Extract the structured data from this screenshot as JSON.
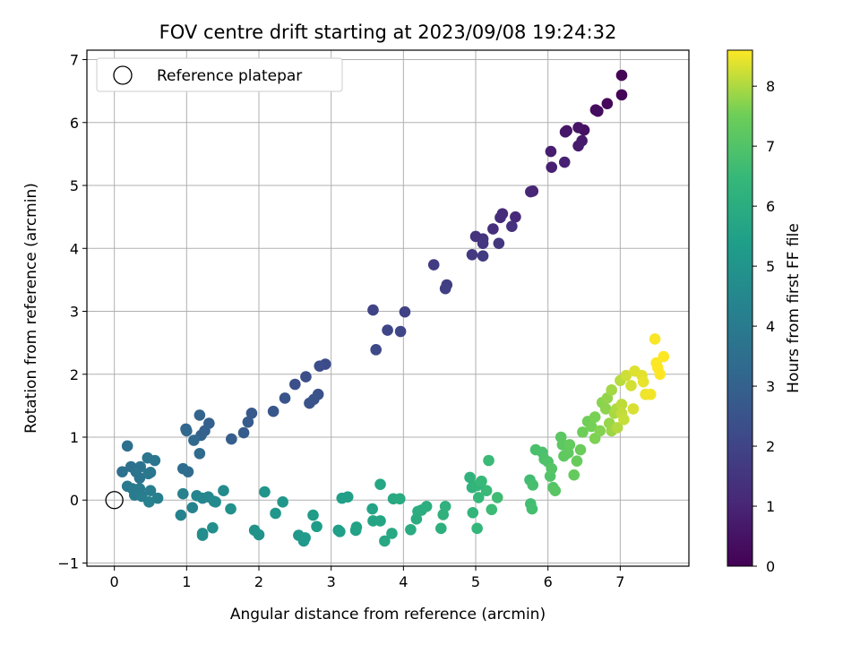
{
  "chart_data": {
    "type": "scatter",
    "title": "FOV centre drift starting at 2023/09/08 19:24:32",
    "xlabel": "Angular distance from reference (arcmin)",
    "ylabel": "Rotation from reference (arcmin)",
    "xlim": [
      -0.38,
      7.95
    ],
    "ylim": [
      -1.05,
      7.15
    ],
    "xticks": [
      0,
      1,
      2,
      3,
      4,
      5,
      6,
      7
    ],
    "yticks": [
      -1,
      0,
      1,
      2,
      3,
      4,
      5,
      6,
      7
    ],
    "grid": true,
    "legend": {
      "position": "top-left",
      "label": "Reference platepar"
    },
    "reference_point": {
      "x": 0,
      "y": 0
    },
    "colorbar": {
      "label": "Hours from first FF file",
      "colormap": "viridis",
      "range": [
        0,
        8.6
      ],
      "ticks": [
        0,
        1,
        2,
        3,
        4,
        5,
        6,
        7,
        8
      ]
    },
    "points": [
      [
        7.02,
        6.75,
        0.05
      ],
      [
        7.02,
        6.44,
        0.12
      ],
      [
        6.82,
        6.3,
        0.2
      ],
      [
        6.66,
        6.2,
        0.28
      ],
      [
        6.69,
        6.18,
        0.32
      ],
      [
        6.5,
        5.88,
        0.42
      ],
      [
        6.42,
        5.92,
        0.5
      ],
      [
        6.26,
        5.87,
        0.55
      ],
      [
        6.24,
        5.85,
        0.6
      ],
      [
        6.47,
        5.71,
        0.66
      ],
      [
        6.42,
        5.63,
        0.72
      ],
      [
        6.04,
        5.54,
        0.8
      ],
      [
        6.05,
        5.29,
        0.86
      ],
      [
        6.23,
        5.37,
        0.92
      ],
      [
        5.79,
        4.91,
        1.0
      ],
      [
        5.76,
        4.9,
        1.05
      ],
      [
        5.55,
        4.5,
        1.12
      ],
      [
        5.37,
        4.55,
        1.2
      ],
      [
        5.34,
        4.49,
        1.24
      ],
      [
        5.24,
        4.31,
        1.3
      ],
      [
        5.5,
        4.35,
        1.36
      ],
      [
        5.0,
        4.19,
        1.42
      ],
      [
        5.1,
        4.15,
        1.48
      ],
      [
        5.1,
        4.08,
        1.52
      ],
      [
        5.32,
        4.08,
        1.56
      ],
      [
        4.95,
        3.9,
        1.62
      ],
      [
        5.1,
        3.88,
        1.68
      ],
      [
        4.42,
        3.74,
        1.74
      ],
      [
        4.6,
        3.42,
        1.8
      ],
      [
        4.58,
        3.36,
        1.85
      ],
      [
        4.02,
        2.99,
        1.92
      ],
      [
        3.58,
        3.02,
        1.98
      ],
      [
        3.78,
        2.7,
        2.04
      ],
      [
        3.96,
        2.68,
        2.08
      ],
      [
        3.62,
        2.39,
        2.14
      ],
      [
        2.92,
        2.16,
        2.2
      ],
      [
        2.84,
        2.13,
        2.26
      ],
      [
        2.65,
        1.96,
        2.32
      ],
      [
        2.5,
        1.84,
        2.38
      ],
      [
        2.82,
        1.68,
        2.44
      ],
      [
        2.76,
        1.6,
        2.48
      ],
      [
        2.7,
        1.54,
        2.52
      ],
      [
        2.36,
        1.62,
        2.58
      ],
      [
        2.2,
        1.41,
        2.64
      ],
      [
        1.9,
        1.38,
        2.7
      ],
      [
        1.85,
        1.24,
        2.76
      ],
      [
        1.79,
        1.07,
        2.82
      ],
      [
        1.62,
        0.97,
        2.88
      ],
      [
        1.31,
        1.22,
        2.94
      ],
      [
        1.25,
        1.1,
        2.98
      ],
      [
        1.2,
        1.03,
        3.04
      ],
      [
        1.18,
        1.35,
        3.1
      ],
      [
        0.99,
        1.13,
        3.16
      ],
      [
        1.0,
        1.1,
        3.22
      ],
      [
        1.1,
        0.95,
        3.28
      ],
      [
        1.18,
        0.74,
        3.34
      ],
      [
        1.02,
        0.45,
        3.4
      ],
      [
        0.95,
        0.5,
        3.45
      ],
      [
        0.18,
        0.86,
        3.5
      ],
      [
        0.11,
        0.45,
        3.56
      ],
      [
        0.23,
        0.53,
        3.6
      ],
      [
        0.36,
        0.53,
        3.64
      ],
      [
        0.3,
        0.45,
        3.68
      ],
      [
        0.35,
        0.35,
        3.72
      ],
      [
        0.46,
        0.67,
        3.76
      ],
      [
        0.56,
        0.63,
        3.8
      ],
      [
        0.5,
        0.44,
        3.84
      ],
      [
        0.47,
        0.42,
        3.88
      ],
      [
        0.18,
        0.22,
        3.92
      ],
      [
        0.25,
        0.18,
        3.96
      ],
      [
        0.35,
        0.18,
        4.0
      ],
      [
        0.28,
        0.08,
        4.04
      ],
      [
        0.38,
        0.06,
        4.08
      ],
      [
        0.5,
        0.15,
        4.12
      ],
      [
        0.6,
        0.03,
        4.16
      ],
      [
        0.48,
        -0.03,
        4.2
      ],
      [
        0.95,
        0.1,
        4.25
      ],
      [
        0.92,
        -0.24,
        4.3
      ],
      [
        1.08,
        -0.12,
        4.35
      ],
      [
        1.14,
        0.07,
        4.4
      ],
      [
        1.22,
        0.03,
        4.45
      ],
      [
        1.3,
        0.05,
        4.5
      ],
      [
        1.38,
        -0.02,
        4.55
      ],
      [
        1.4,
        -0.03,
        4.6
      ],
      [
        1.51,
        0.15,
        4.65
      ],
      [
        1.22,
        -0.53,
        4.7
      ],
      [
        1.22,
        -0.56,
        4.75
      ],
      [
        1.36,
        -0.44,
        4.8
      ],
      [
        1.61,
        -0.14,
        4.85
      ],
      [
        1.94,
        -0.48,
        4.9
      ],
      [
        2.0,
        -0.55,
        4.95
      ],
      [
        2.08,
        0.13,
        5.0
      ],
      [
        2.23,
        -0.21,
        5.05
      ],
      [
        2.33,
        -0.03,
        5.1
      ],
      [
        2.55,
        -0.56,
        5.15
      ],
      [
        2.62,
        -0.65,
        5.2
      ],
      [
        2.64,
        -0.6,
        5.24
      ],
      [
        2.75,
        -0.24,
        5.28
      ],
      [
        2.8,
        -0.42,
        5.32
      ],
      [
        3.1,
        -0.48,
        5.36
      ],
      [
        3.12,
        -0.5,
        5.4
      ],
      [
        3.15,
        0.03,
        5.44
      ],
      [
        3.23,
        0.05,
        5.48
      ],
      [
        3.34,
        -0.48,
        5.52
      ],
      [
        3.35,
        -0.43,
        5.56
      ],
      [
        3.57,
        -0.14,
        5.6
      ],
      [
        3.58,
        -0.33,
        5.64
      ],
      [
        3.68,
        -0.33,
        5.68
      ],
      [
        3.68,
        0.25,
        5.72
      ],
      [
        3.74,
        -0.65,
        5.76
      ],
      [
        3.84,
        -0.53,
        5.8
      ],
      [
        3.86,
        0.02,
        5.84
      ],
      [
        3.95,
        0.02,
        5.88
      ],
      [
        4.1,
        -0.47,
        5.92
      ],
      [
        4.18,
        -0.3,
        5.96
      ],
      [
        4.2,
        -0.18,
        6.0
      ],
      [
        4.25,
        -0.16,
        6.04
      ],
      [
        4.32,
        -0.1,
        6.08
      ],
      [
        4.52,
        -0.45,
        6.12
      ],
      [
        4.55,
        -0.23,
        6.16
      ],
      [
        4.58,
        -0.1,
        6.2
      ],
      [
        4.92,
        0.36,
        6.24
      ],
      [
        4.95,
        0.2,
        6.28
      ],
      [
        4.96,
        -0.2,
        6.32
      ],
      [
        5.02,
        0.23,
        6.36
      ],
      [
        5.02,
        -0.45,
        6.4
      ],
      [
        5.04,
        0.04,
        6.44
      ],
      [
        5.08,
        0.3,
        6.48
      ],
      [
        5.15,
        0.15,
        6.52
      ],
      [
        5.18,
        0.63,
        6.56
      ],
      [
        5.22,
        -0.15,
        6.6
      ],
      [
        5.3,
        0.04,
        6.64
      ],
      [
        5.75,
        0.32,
        6.68
      ],
      [
        5.76,
        -0.06,
        6.72
      ],
      [
        5.78,
        -0.14,
        6.76
      ],
      [
        5.79,
        0.24,
        6.8
      ],
      [
        5.83,
        0.8,
        6.84
      ],
      [
        5.92,
        0.76,
        6.88
      ],
      [
        5.95,
        0.65,
        6.92
      ],
      [
        6.0,
        0.61,
        6.96
      ],
      [
        6.03,
        0.38,
        7.0
      ],
      [
        6.05,
        0.5,
        7.04
      ],
      [
        6.07,
        0.2,
        7.08
      ],
      [
        6.1,
        0.15,
        7.12
      ],
      [
        6.18,
        1.0,
        7.16
      ],
      [
        6.2,
        0.88,
        7.2
      ],
      [
        6.22,
        0.7,
        7.24
      ],
      [
        6.28,
        0.75,
        7.28
      ],
      [
        6.3,
        0.88,
        7.32
      ],
      [
        6.36,
        0.4,
        7.36
      ],
      [
        6.4,
        0.62,
        7.4
      ],
      [
        6.45,
        0.8,
        7.44
      ],
      [
        6.48,
        1.08,
        7.48
      ],
      [
        6.55,
        1.25,
        7.52
      ],
      [
        6.6,
        1.17,
        7.56
      ],
      [
        6.65,
        1.32,
        7.6
      ],
      [
        6.65,
        0.98,
        7.64
      ],
      [
        6.72,
        1.1,
        7.68
      ],
      [
        6.75,
        1.55,
        7.72
      ],
      [
        6.8,
        1.45,
        7.76
      ],
      [
        6.82,
        1.62,
        7.8
      ],
      [
        6.85,
        1.22,
        7.84
      ],
      [
        6.88,
        1.1,
        7.88
      ],
      [
        6.88,
        1.75,
        7.92
      ],
      [
        6.92,
        1.38,
        7.96
      ],
      [
        6.95,
        1.45,
        8.0
      ],
      [
        6.96,
        1.15,
        8.04
      ],
      [
        7.0,
        1.9,
        8.08
      ],
      [
        7.02,
        1.52,
        8.12
      ],
      [
        7.02,
        1.38,
        8.16
      ],
      [
        7.05,
        1.28,
        8.2
      ],
      [
        7.08,
        1.98,
        8.24
      ],
      [
        7.15,
        1.82,
        8.28
      ],
      [
        7.18,
        1.45,
        8.32
      ],
      [
        7.2,
        2.05,
        8.36
      ],
      [
        7.3,
        1.98,
        8.4
      ],
      [
        7.32,
        1.88,
        8.44
      ],
      [
        7.35,
        1.68,
        8.48
      ],
      [
        7.42,
        1.68,
        8.52
      ],
      [
        7.48,
        2.56,
        8.56
      ],
      [
        7.5,
        2.18,
        8.58
      ],
      [
        7.52,
        2.1,
        8.6
      ],
      [
        7.55,
        2.0,
        8.6
      ],
      [
        7.6,
        2.28,
        8.6
      ]
    ]
  }
}
